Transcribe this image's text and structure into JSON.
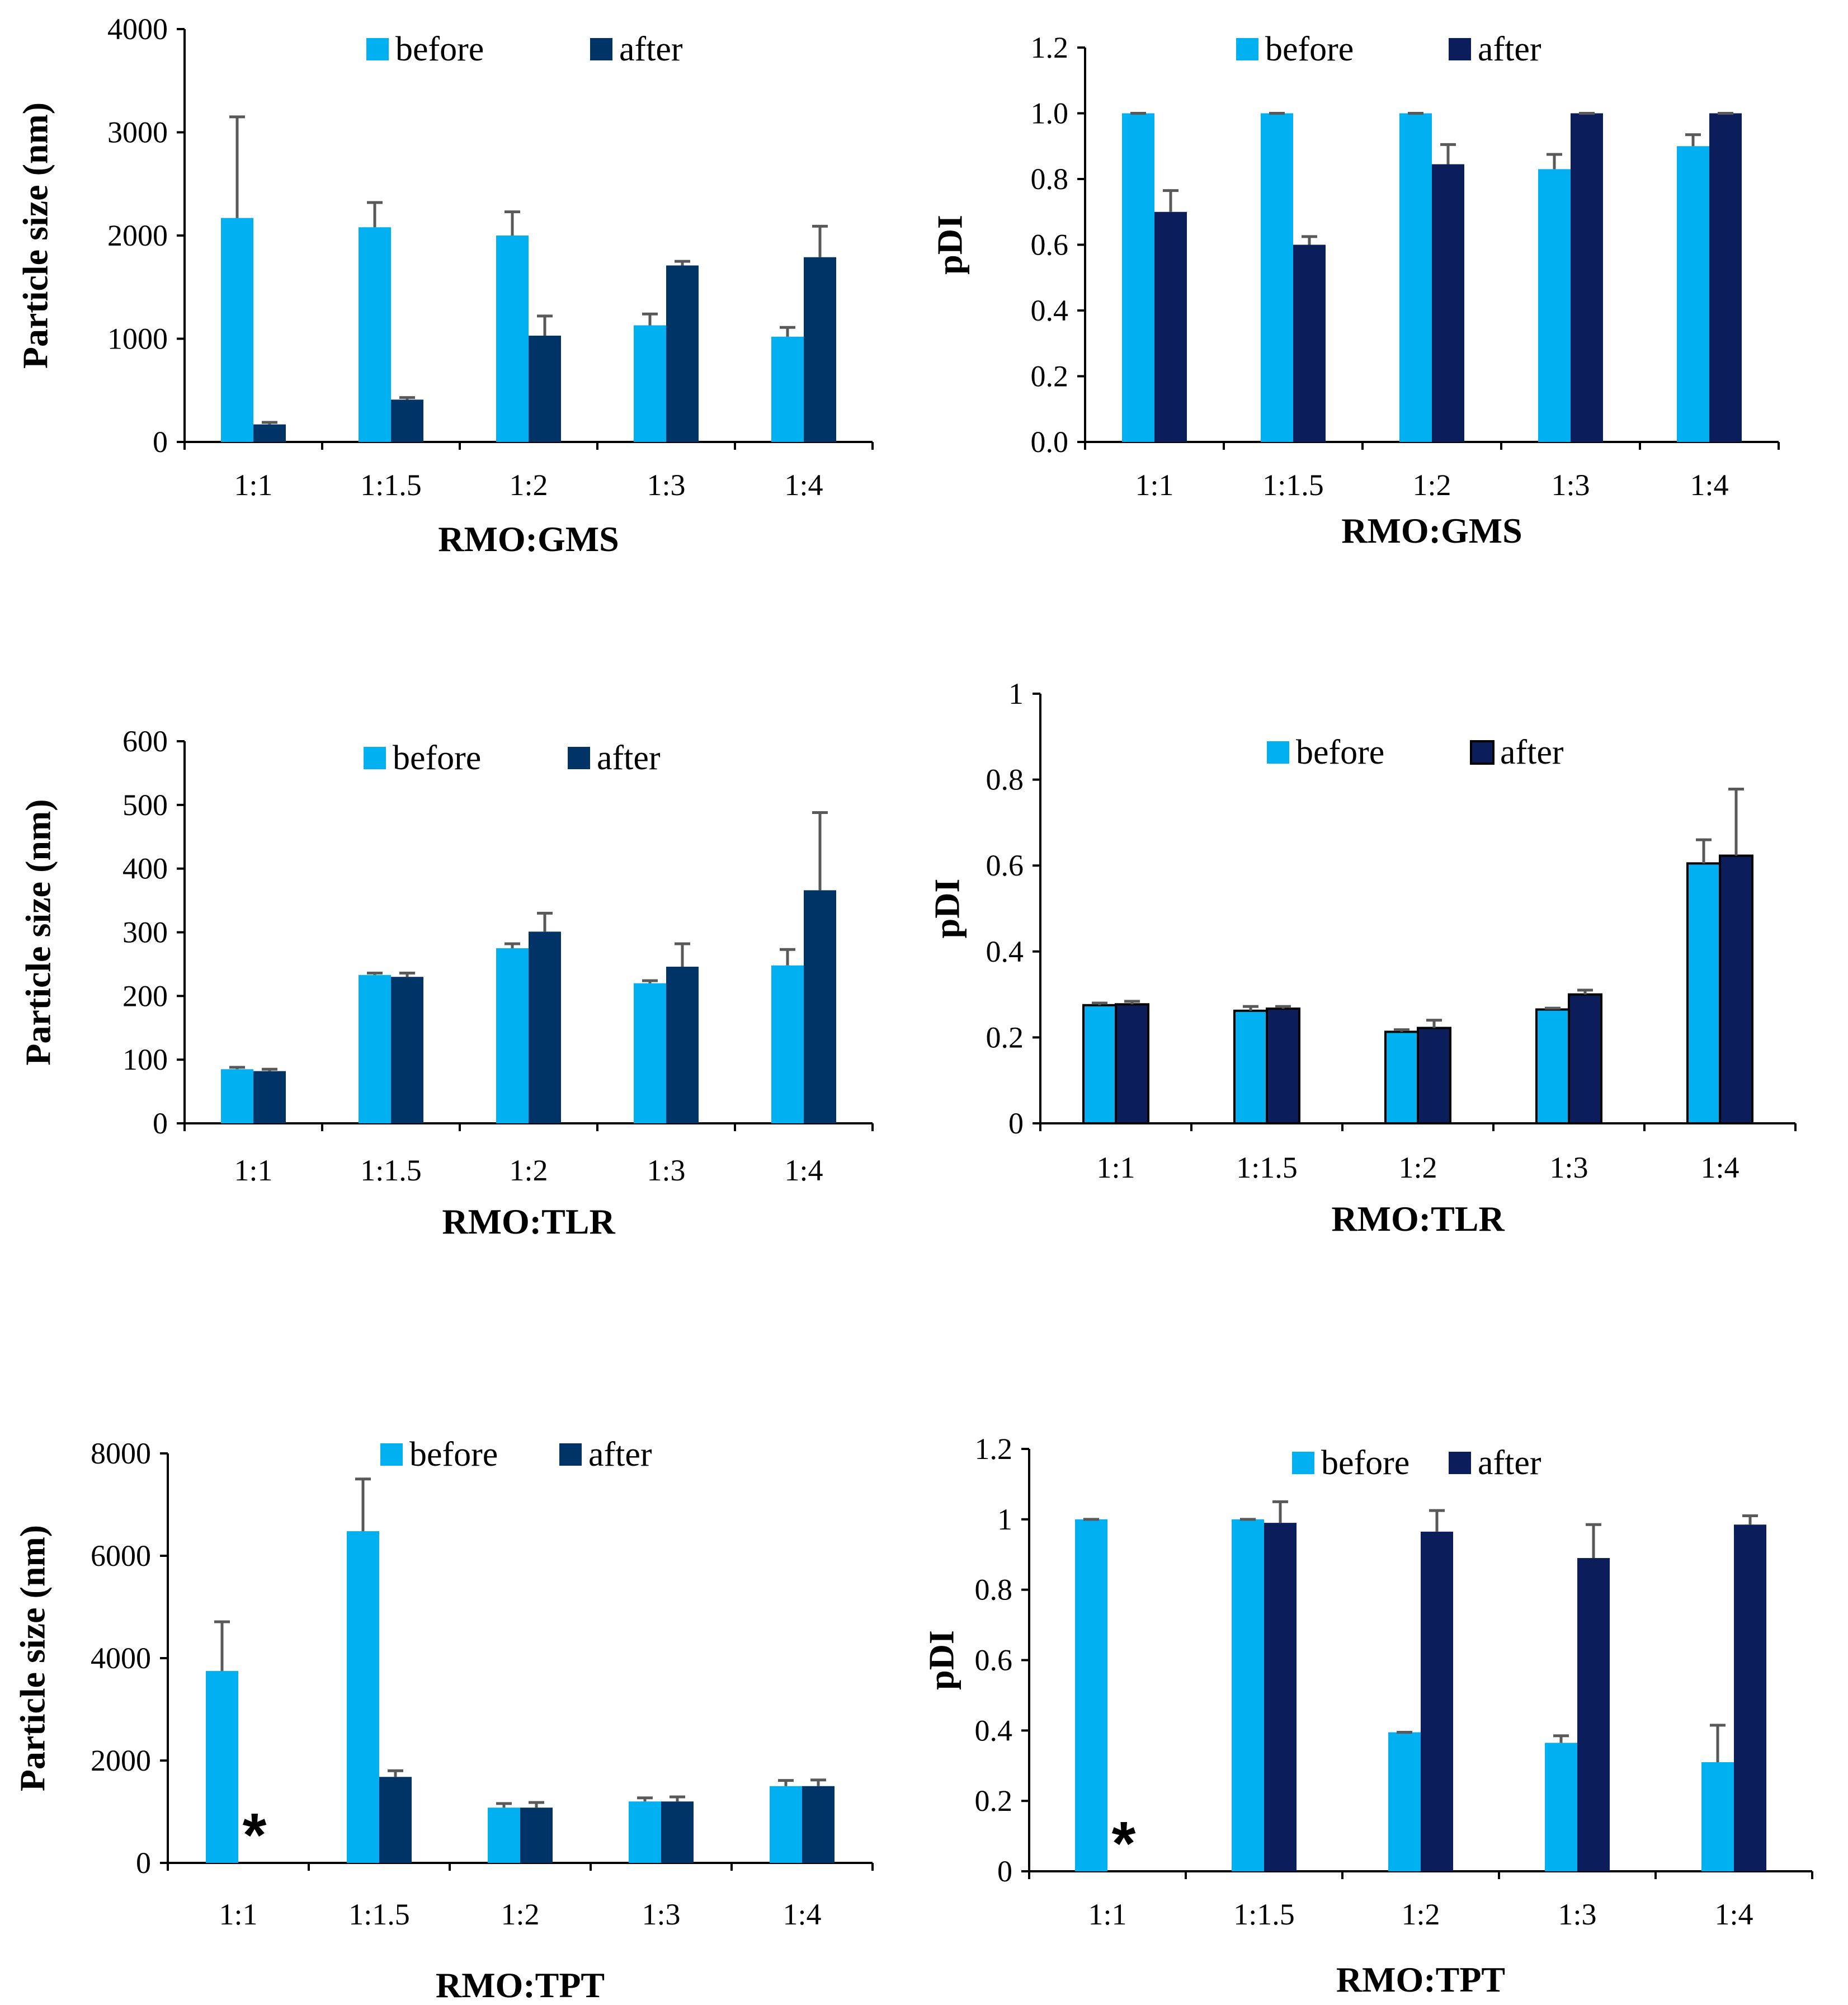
{
  "colors": {
    "before": "#00b0f0",
    "after_gms": "#003366",
    "after_navy": "#0c1d5c",
    "axis": "#000000",
    "errbar": "#595959"
  },
  "chart_data": [
    {
      "id": "gms-size",
      "type": "bar",
      "categories": [
        "1:1",
        "1:1.5",
        "1:2",
        "1:3",
        "1:4"
      ],
      "series": [
        {
          "name": "before",
          "values": [
            2170,
            2080,
            2000,
            1130,
            1020
          ],
          "errors": [
            980,
            240,
            230,
            110,
            90
          ]
        },
        {
          "name": "after",
          "values": [
            170,
            410,
            1030,
            1710,
            1790
          ],
          "errors": [
            20,
            20,
            190,
            40,
            300
          ]
        }
      ],
      "ylim": [
        0,
        4000
      ],
      "yticks": [
        "0",
        "1000",
        "2000",
        "3000",
        "4000"
      ],
      "yticks_val": [
        0,
        1000,
        2000,
        3000,
        4000
      ],
      "ylabel": "Particle size (nm)",
      "xlabel": "RMO:GMS",
      "legend": [
        "before",
        "after"
      ],
      "after_color": "after_gms",
      "outlined": false
    },
    {
      "id": "gms-pdi",
      "type": "bar",
      "categories": [
        "1:1",
        "1:1.5",
        "1:2",
        "1:3",
        "1:4"
      ],
      "series": [
        {
          "name": "before",
          "values": [
            1.0,
            1.0,
            1.0,
            0.83,
            0.9
          ],
          "errors": [
            0,
            0,
            0,
            0.045,
            0.035
          ]
        },
        {
          "name": "after",
          "values": [
            0.7,
            0.6,
            0.845,
            1.0,
            1.0
          ],
          "errors": [
            0.065,
            0.025,
            0.06,
            0,
            0
          ]
        }
      ],
      "ylim": [
        0,
        1.2
      ],
      "yticks": [
        "0.0",
        "0.2",
        "0.4",
        "0.6",
        "0.8",
        "1.0",
        "1.2"
      ],
      "yticks_val": [
        0,
        0.2,
        0.4,
        0.6,
        0.8,
        1.0,
        1.2
      ],
      "ylabel": "pDI",
      "xlabel": "RMO:GMS",
      "legend": [
        "before",
        "after"
      ],
      "after_color": "after_navy",
      "outlined": false
    },
    {
      "id": "tlr-size",
      "type": "bar",
      "categories": [
        "1:1",
        "1:1.5",
        "1:2",
        "1:3",
        "1:4"
      ],
      "series": [
        {
          "name": "before",
          "values": [
            85,
            233,
            275,
            220,
            248
          ],
          "errors": [
            3,
            3,
            7,
            4,
            25
          ]
        },
        {
          "name": "after",
          "values": [
            82,
            230,
            301,
            246,
            366
          ],
          "errors": [
            3,
            6,
            29,
            36,
            122
          ]
        }
      ],
      "ylim": [
        0,
        600
      ],
      "yticks": [
        "0",
        "100",
        "200",
        "300",
        "400",
        "500",
        "600"
      ],
      "yticks_val": [
        0,
        100,
        200,
        300,
        400,
        500,
        600
      ],
      "ylabel": "Particle size (nm)",
      "xlabel": "RMO:TLR",
      "legend": [
        "before",
        "after"
      ],
      "after_color": "after_gms",
      "outlined": false
    },
    {
      "id": "tlr-pdi",
      "type": "bar",
      "categories": [
        "1:1",
        "1:1.5",
        "1:2",
        "1:3",
        "1:4"
      ],
      "series": [
        {
          "name": "before",
          "values": [
            0.275,
            0.262,
            0.213,
            0.265,
            0.605
          ],
          "errors": [
            0.005,
            0.01,
            0.005,
            0.003,
            0.055
          ]
        },
        {
          "name": "after",
          "values": [
            0.277,
            0.267,
            0.222,
            0.3,
            0.623
          ],
          "errors": [
            0.007,
            0.005,
            0.018,
            0.01,
            0.155
          ]
        }
      ],
      "ylim": [
        0,
        1
      ],
      "yticks": [
        "0",
        "0.2",
        "0.4",
        "0.6",
        "0.8",
        "1"
      ],
      "yticks_val": [
        0,
        0.2,
        0.4,
        0.6,
        0.8,
        1
      ],
      "ylabel": "pDI",
      "xlabel": "RMO:TLR",
      "legend": [
        "before",
        "after"
      ],
      "after_color": "after_navy",
      "outlined": true
    },
    {
      "id": "tpt-size",
      "type": "bar",
      "categories": [
        "1:1",
        "1:1.5",
        "1:2",
        "1:3",
        "1:4"
      ],
      "series": [
        {
          "name": "before",
          "values": [
            3750,
            6480,
            1080,
            1200,
            1500
          ],
          "errors": [
            960,
            1020,
            80,
            70,
            110
          ]
        },
        {
          "name": "after",
          "values": [
            null,
            1680,
            1080,
            1200,
            1500
          ],
          "errors": [
            0,
            120,
            100,
            90,
            120
          ]
        }
      ],
      "ylim": [
        0,
        8000
      ],
      "yticks": [
        "0",
        "2000",
        "4000",
        "6000",
        "8000"
      ],
      "yticks_val": [
        0,
        2000,
        4000,
        6000,
        8000
      ],
      "ylabel": "Particle size (nm)",
      "xlabel": "RMO:TPT",
      "legend": [
        "before",
        "after"
      ],
      "after_color": "after_gms",
      "outlined": false,
      "annotation": "*"
    },
    {
      "id": "tpt-pdi",
      "type": "bar",
      "categories": [
        "1:1",
        "1:1.5",
        "1:2",
        "1:3",
        "1:4"
      ],
      "series": [
        {
          "name": "before",
          "values": [
            1.0,
            1.0,
            0.395,
            0.365,
            0.31
          ],
          "errors": [
            0,
            0,
            0,
            0.02,
            0.105
          ]
        },
        {
          "name": "after",
          "values": [
            null,
            0.99,
            0.965,
            0.89,
            0.985
          ],
          "errors": [
            0,
            0.06,
            0.06,
            0.095,
            0.025
          ]
        }
      ],
      "ylim": [
        0,
        1.2
      ],
      "yticks": [
        "0",
        "0.2",
        "0.4",
        "0.6",
        "0.8",
        "1",
        "1.2"
      ],
      "yticks_val": [
        0,
        0.2,
        0.4,
        0.6,
        0.8,
        1,
        1.2
      ],
      "ylabel": "pDI",
      "xlabel": "RMO:TPT",
      "legend": [
        "before",
        "after"
      ],
      "after_color": "after_navy",
      "outlined": false,
      "annotation": "*"
    }
  ]
}
